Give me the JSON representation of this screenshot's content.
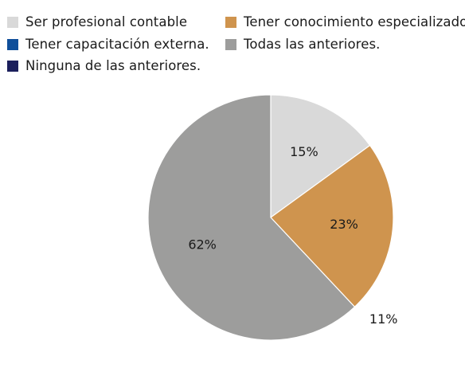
{
  "chart_data": {
    "type": "pie",
    "categories": [
      "Ser profesional contable",
      "Tener conocimiento especializado.",
      "Tener capacitación externa.",
      "Todas las anteriores.",
      "Ninguna de las anteriores."
    ],
    "series": [
      {
        "values": [
          15,
          23,
          0,
          62,
          0
        ]
      }
    ],
    "labels": [
      "15%",
      "23%",
      "",
      "62%",
      ""
    ],
    "extra_labels": [
      {
        "after_slice": 1,
        "text": "11%"
      }
    ],
    "start": "top",
    "direction": "clockwise",
    "legend_placement": "top",
    "colors": [
      "#d9d9d9",
      "#cf944e",
      "#0f4f9a",
      "#9d9d9c",
      "#1b1f5c"
    ]
  }
}
